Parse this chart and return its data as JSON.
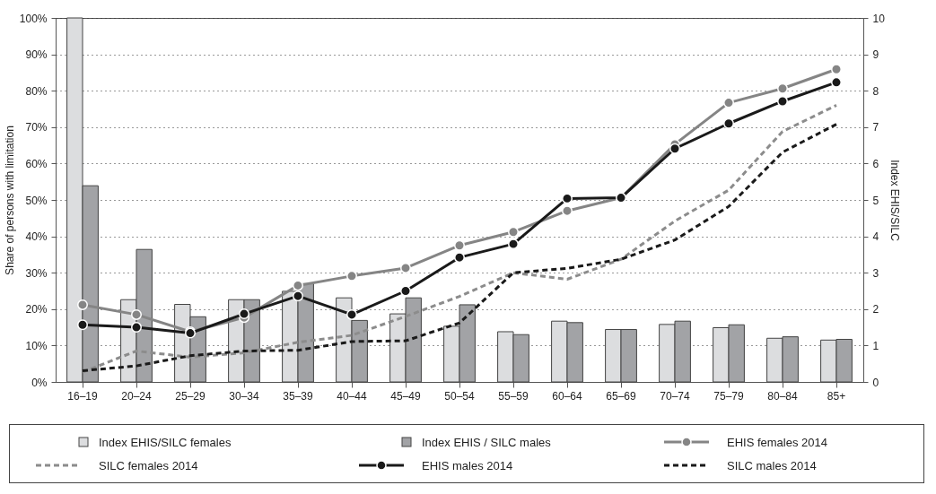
{
  "chart_data": {
    "type": "bar",
    "categories": [
      "16–19",
      "20–24",
      "25–29",
      "30–34",
      "35–39",
      "40–44",
      "45–49",
      "50–54",
      "55–59",
      "60–64",
      "65–69",
      "70–74",
      "75–79",
      "80–84",
      "85+"
    ],
    "series": [
      {
        "name": "Index EHIS/SILC females",
        "axis": "y2",
        "color": "#dcdddf",
        "values": [
          10,
          2.26,
          2.13,
          2.26,
          2.49,
          2.31,
          1.87,
          1.53,
          1.38,
          1.67,
          1.44,
          1.58,
          1.49,
          1.2,
          1.15
        ]
      },
      {
        "name": "Index EHIS / SILC  males",
        "axis": "y2",
        "color": "#a2a3a6",
        "values": [
          5.39,
          3.64,
          1.79,
          2.26,
          2.7,
          1.69,
          2.31,
          2.12,
          1.3,
          1.63,
          1.44,
          1.67,
          1.57,
          1.24,
          1.17
        ]
      },
      {
        "name": "EHIS females 2014",
        "type": "line",
        "marker": "circle",
        "line_style": "solid",
        "color": "#858585",
        "values": [
          21.2,
          18.5,
          13.8,
          17.7,
          26.5,
          29.1,
          31.3,
          37.5,
          41.2,
          47,
          50.6,
          65.3,
          76.7,
          80.6,
          85.9
        ]
      },
      {
        "name": "SILC females 2014",
        "type": "line",
        "marker": "none",
        "line_style": "dashed",
        "color": "#8c8c8c",
        "values": [
          2.7,
          8.5,
          6.8,
          8,
          10.9,
          12.8,
          18,
          23.5,
          30,
          28.2,
          33.7,
          44.2,
          52.7,
          68.8,
          76
        ]
      },
      {
        "name": "EHIS males 2014",
        "type": "line",
        "marker": "circle",
        "line_style": "solid",
        "color": "#1a1a1a",
        "values": [
          15.7,
          15,
          13.4,
          18.7,
          23.6,
          18.5,
          25,
          34.2,
          37.9,
          50.4,
          50.6,
          64.1,
          71,
          77.1,
          82.3
        ]
      },
      {
        "name": "SILC males 2014",
        "type": "line",
        "marker": "none",
        "line_style": "dashed",
        "color": "#1a1a1a",
        "values": [
          3.1,
          4.4,
          7.2,
          8.5,
          8.7,
          11.1,
          11.3,
          16.2,
          30,
          31.2,
          33.7,
          39,
          48.2,
          63.1,
          70.8
        ]
      }
    ],
    "ylabel": "Share of persons with limitation",
    "y2label": "Index EHIS/SILC",
    "ylim": [
      0,
      100
    ],
    "yticks": [
      {
        "value": 0,
        "label": "0%"
      },
      {
        "value": 10,
        "label": "10%"
      },
      {
        "value": 20,
        "label": "20%"
      },
      {
        "value": 30,
        "label": "30%"
      },
      {
        "value": 40,
        "label": "40%"
      },
      {
        "value": 50,
        "label": "50%"
      },
      {
        "value": 60,
        "label": "60%"
      },
      {
        "value": 70,
        "label": "70%"
      },
      {
        "value": 80,
        "label": "80%"
      },
      {
        "value": 90,
        "label": "90%"
      },
      {
        "value": 100,
        "label": "100%"
      }
    ],
    "y2lim": [
      0,
      10
    ],
    "y2ticks": [
      0,
      1,
      2,
      3,
      4,
      5,
      6,
      7,
      8,
      9,
      10
    ],
    "grid": "y",
    "legend": "bottom"
  }
}
